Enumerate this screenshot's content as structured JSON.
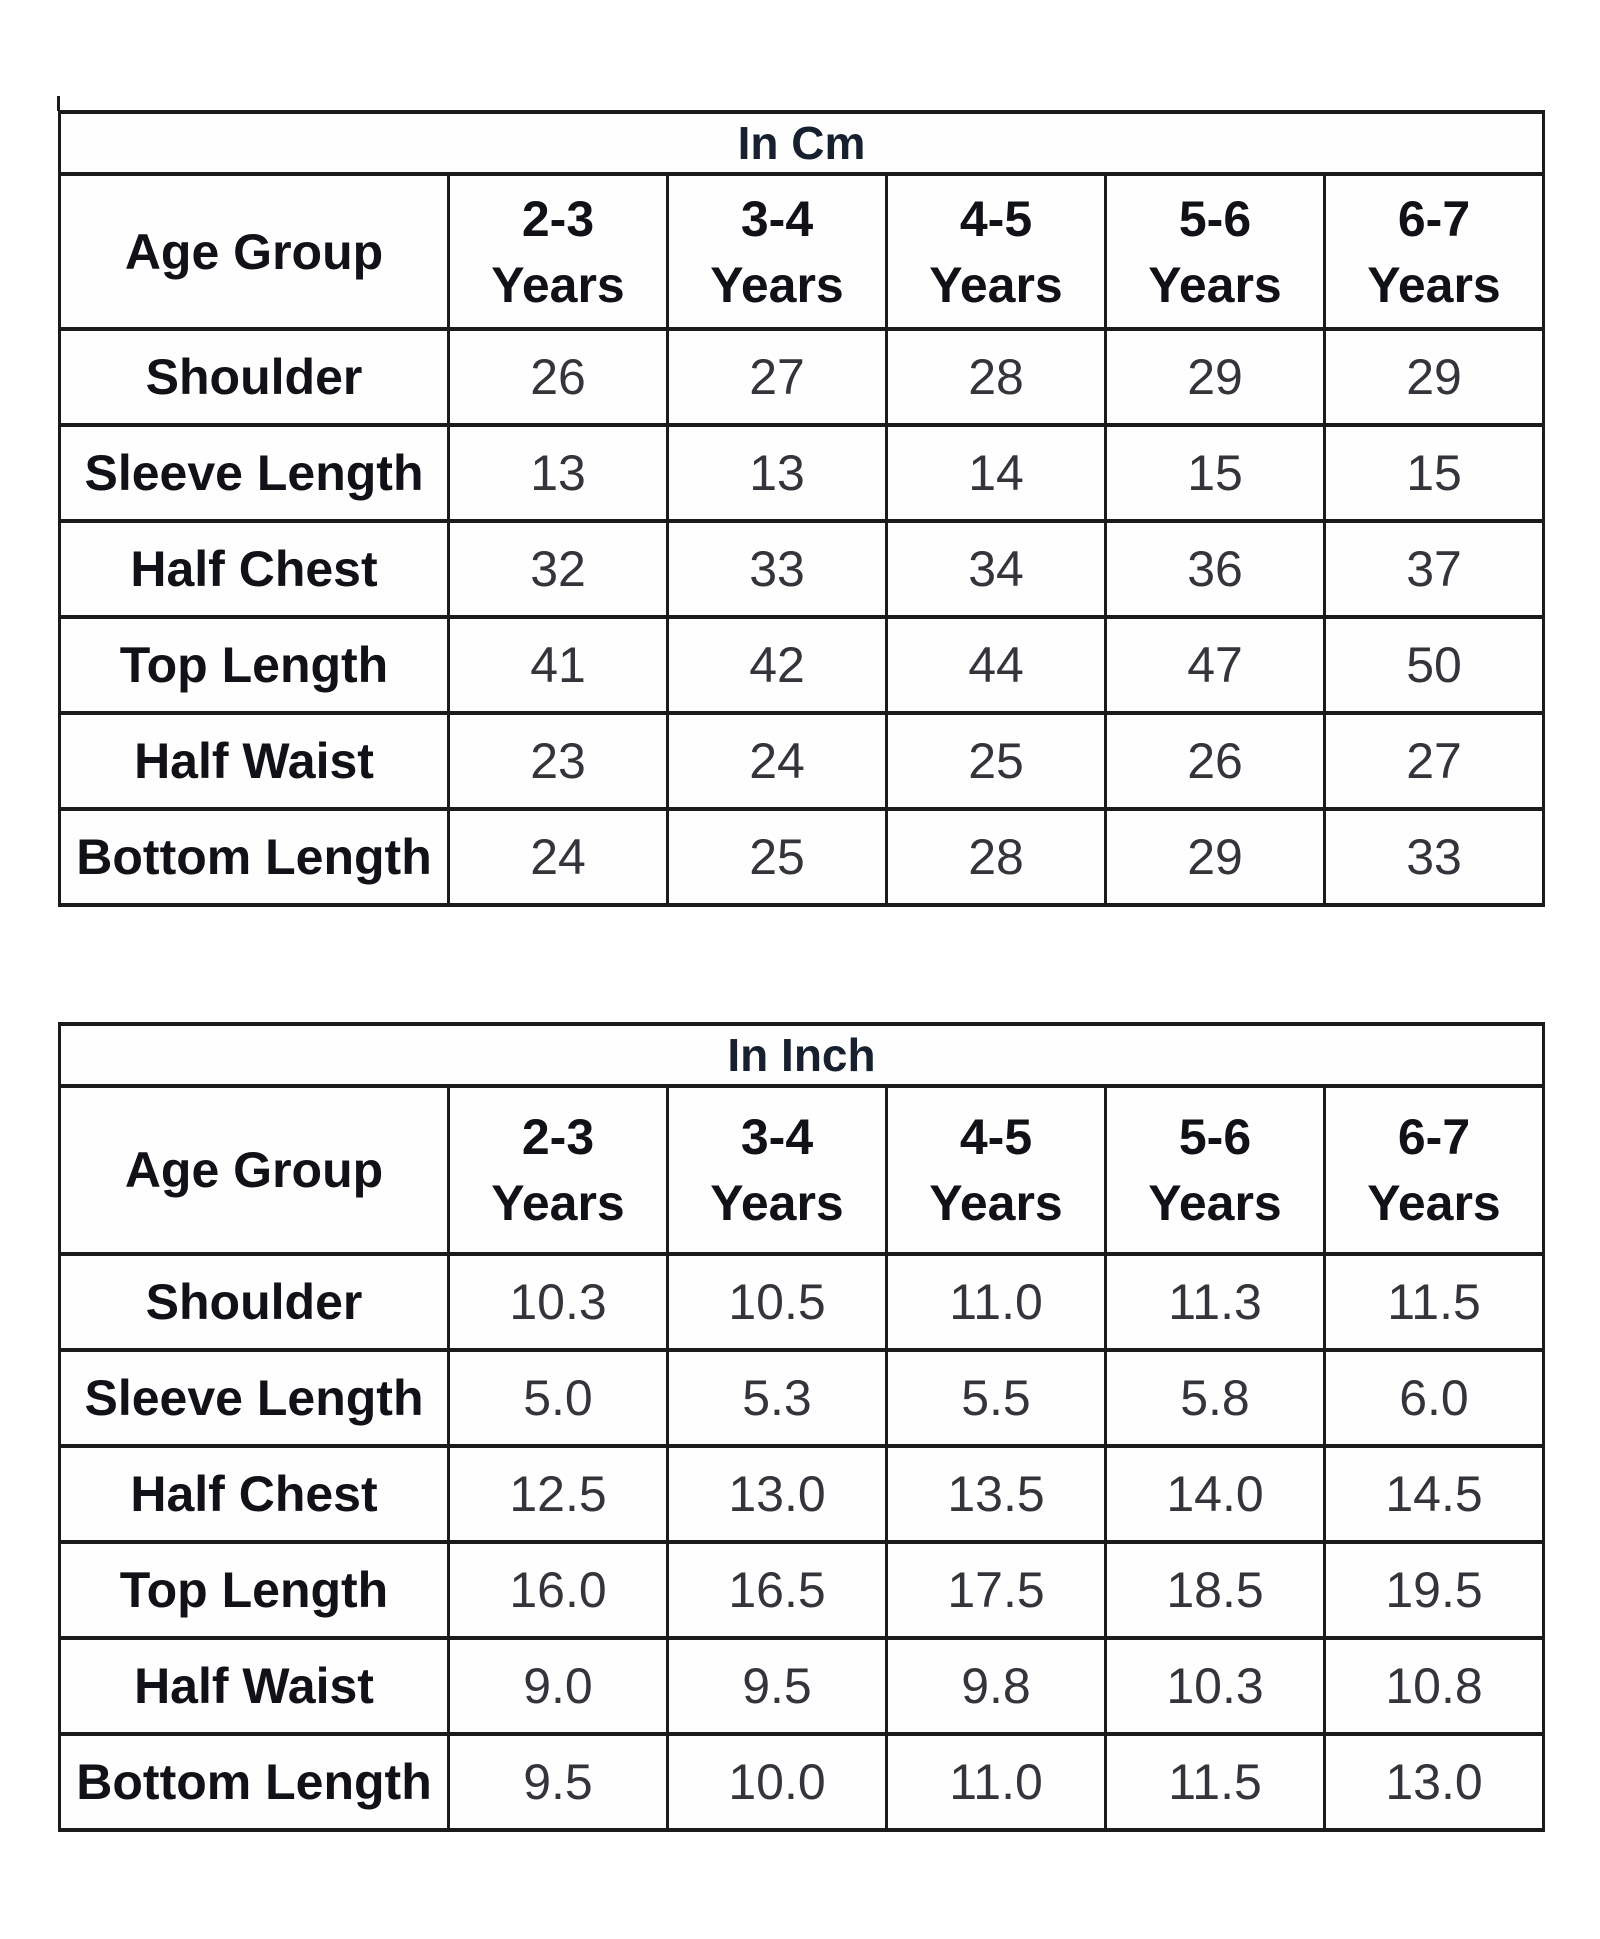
{
  "page": {
    "background": "#ffffff",
    "border_color": "#1b1b1b",
    "heading_text_color": "#101218",
    "number_text_color": "#34343b"
  },
  "tables": [
    {
      "id": "cm",
      "title": "In Cm",
      "corner_label": "Age Group",
      "columns": [
        {
          "range": "2-3",
          "unit": "Years"
        },
        {
          "range": "3-4",
          "unit": "Years"
        },
        {
          "range": "4-5",
          "unit": "Years"
        },
        {
          "range": "5-6",
          "unit": "Years"
        },
        {
          "range": "6-7",
          "unit": "Years"
        }
      ],
      "rows": [
        {
          "label": "Shoulder",
          "values": [
            "26",
            "27",
            "28",
            "29",
            "29"
          ]
        },
        {
          "label": "Sleeve Length",
          "values": [
            "13",
            "13",
            "14",
            "15",
            "15"
          ]
        },
        {
          "label": "Half Chest",
          "values": [
            "32",
            "33",
            "34",
            "36",
            "37"
          ]
        },
        {
          "label": "Top Length",
          "values": [
            "41",
            "42",
            "44",
            "47",
            "50"
          ]
        },
        {
          "label": "Half Waist",
          "values": [
            "23",
            "24",
            "25",
            "26",
            "27"
          ]
        },
        {
          "label": "Bottom Length",
          "values": [
            "24",
            "25",
            "28",
            "29",
            "33"
          ]
        }
      ]
    },
    {
      "id": "inch",
      "title": "In Inch",
      "corner_label": "Age Group",
      "columns": [
        {
          "range": "2-3",
          "unit": "Years"
        },
        {
          "range": "3-4",
          "unit": "Years"
        },
        {
          "range": "4-5",
          "unit": "Years"
        },
        {
          "range": "5-6",
          "unit": "Years"
        },
        {
          "range": "6-7",
          "unit": "Years"
        }
      ],
      "rows": [
        {
          "label": "Shoulder",
          "values": [
            "10.3",
            "10.5",
            "11.0",
            "11.3",
            "11.5"
          ]
        },
        {
          "label": "Sleeve Length",
          "values": [
            "5.0",
            "5.3",
            "5.5",
            "5.8",
            "6.0"
          ]
        },
        {
          "label": "Half Chest",
          "values": [
            "12.5",
            "13.0",
            "13.5",
            "14.0",
            "14.5"
          ]
        },
        {
          "label": "Top Length",
          "values": [
            "16.0",
            "16.5",
            "17.5",
            "18.5",
            "19.5"
          ]
        },
        {
          "label": "Half Waist",
          "values": [
            "9.0",
            "9.5",
            "9.8",
            "10.3",
            "10.8"
          ]
        },
        {
          "label": "Bottom Length",
          "values": [
            "9.5",
            "10.0",
            "11.0",
            "11.5",
            "13.0"
          ]
        }
      ]
    }
  ]
}
